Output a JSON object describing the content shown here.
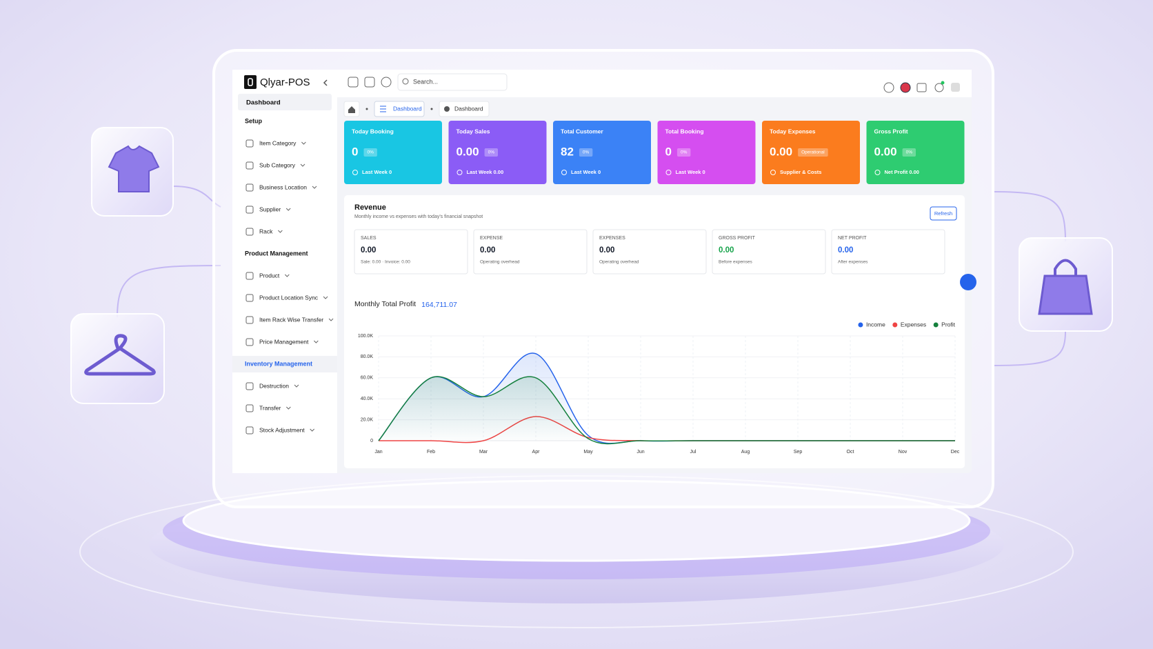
{
  "sidebar": {
    "brand": "Qlyar-POS",
    "active": "Dashboard",
    "sections": [
      {
        "title": "Setup",
        "items": [
          "Item Category",
          "Sub Category",
          "Business Location",
          "Supplier",
          "Rack"
        ]
      },
      {
        "title": "Product Management",
        "items": [
          "Product",
          "Product Location Sync",
          "Item Rack Wise Transfer",
          "Price Management"
        ]
      },
      {
        "title": "Inventory Management",
        "items": [
          "Destruction",
          "Transfer",
          "Stock Adjustment"
        ]
      }
    ]
  },
  "topbar": {
    "search_placeholder": "Search..."
  },
  "breadcrumb": [
    "Dashboard",
    "Dashboard"
  ],
  "cards": [
    {
      "title": "Today Booking",
      "value": "0",
      "badge": "0%",
      "footer": "Last Week 0",
      "color": "#19c6e3"
    },
    {
      "title": "Today Sales",
      "value": "0.00",
      "badge": "0%",
      "footer": "Last Week 0.00",
      "color": "#8b5cf6"
    },
    {
      "title": "Total Customer",
      "value": "82",
      "badge": "0%",
      "footer": "Last Week 0",
      "color": "#3b82f6"
    },
    {
      "title": "Total Booking",
      "value": "0",
      "badge": "0%",
      "footer": "Last Week 0",
      "color": "#d54ef0"
    },
    {
      "title": "Today Expenses",
      "value": "0.00",
      "badge": "Operational",
      "footer": "Supplier & Costs",
      "color": "#fb7c1e"
    },
    {
      "title": "Gross Profit",
      "value": "0.00",
      "badge": "0%",
      "footer": "Net Profit 0.00",
      "color": "#2ecc71"
    }
  ],
  "revenue": {
    "title": "Revenue",
    "subtitle": "Monthly income vs expenses with today's financial snapshot",
    "button": "Refresh",
    "stats": [
      {
        "label": "SALES",
        "value": "0.00",
        "note": "Sale: 0.00 · Invoice: 0.00",
        "value_color": "#111827"
      },
      {
        "label": "EXPENSE",
        "value": "0.00",
        "note": "Operating overhead",
        "value_color": "#111827"
      },
      {
        "label": "EXPENSES",
        "value": "0.00",
        "note": "Operating overhead",
        "value_color": "#111827"
      },
      {
        "label": "GROSS PROFIT",
        "value": "0.00",
        "note": "Before expenses",
        "value_color": "#16a34a"
      },
      {
        "label": "NET PROFIT",
        "value": "0.00",
        "note": "After expenses",
        "value_color": "#2563eb"
      }
    ],
    "total_label": "Monthly Total Profit",
    "total_value": "164,711.07"
  },
  "chart_data": {
    "type": "line",
    "categories": [
      "Jan",
      "Feb",
      "Mar",
      "Apr",
      "May",
      "Jun",
      "Jul",
      "Aug",
      "Sep",
      "Oct",
      "Nov",
      "Dec"
    ],
    "series": [
      {
        "name": "Income",
        "color": "#2563eb",
        "values": [
          0,
          60000,
          42000,
          83000,
          5000,
          0,
          0,
          0,
          0,
          0,
          0,
          0
        ]
      },
      {
        "name": "Expenses",
        "color": "#ef4444",
        "values": [
          0,
          0,
          0,
          23000,
          3000,
          0,
          0,
          0,
          0,
          0,
          0,
          0
        ]
      },
      {
        "name": "Profit",
        "color": "#15803d",
        "values": [
          0,
          60000,
          42000,
          60000,
          2000,
          0,
          0,
          0,
          0,
          0,
          0,
          0
        ]
      }
    ],
    "ylim": [
      0,
      100000
    ],
    "yticks": [
      0,
      {
        "value": 20000,
        "label": "20.0K"
      },
      {
        "value": 40000,
        "label": "40.0K"
      },
      {
        "value": 60000,
        "label": "60.0K"
      },
      {
        "value": 80000,
        "label": "80.0K"
      },
      {
        "value": 100000,
        "label": "100.0K"
      }
    ],
    "grid": true,
    "legend": "top-right"
  }
}
